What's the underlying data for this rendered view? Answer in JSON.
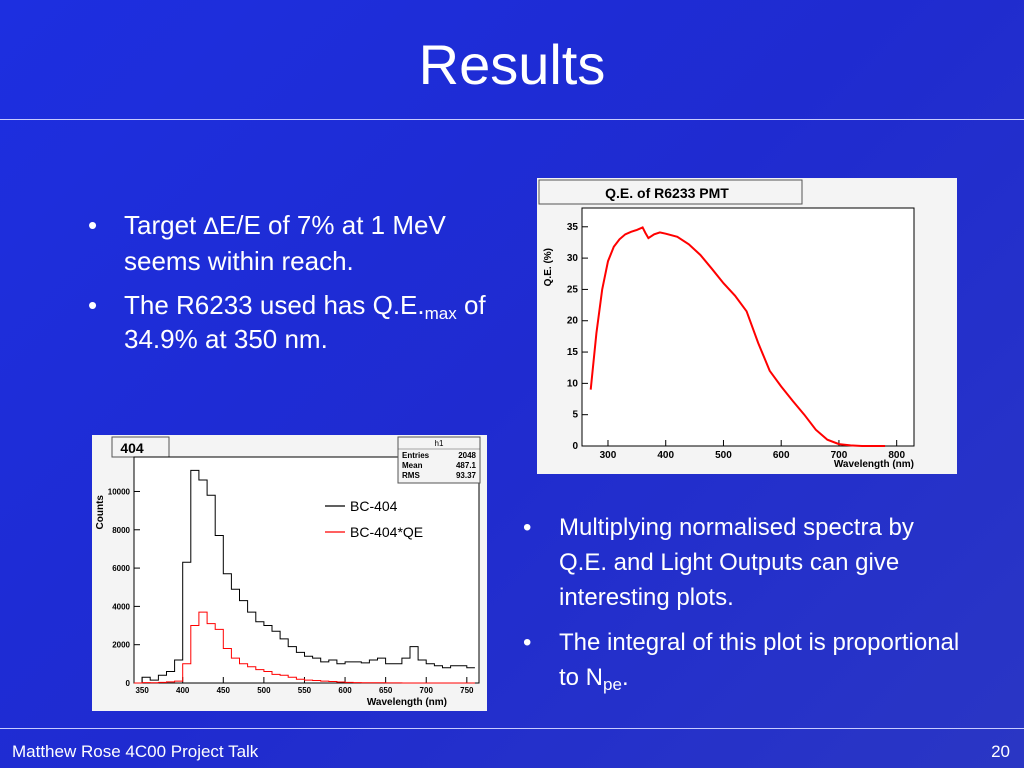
{
  "title": "Results",
  "bullets_top": [
    {
      "pre": "Target ",
      "symbol": "∆",
      "rest": "E/E of 7% at 1 MeV seems within reach."
    },
    {
      "text1": "The R6233 used has Q.E.",
      "sub": "max",
      "text2": " of 34.9% at 350 nm."
    }
  ],
  "bullets_bottom": [
    {
      "text": "Multiplying normalised spectra by Q.E. and Light Outputs can give interesting plots."
    },
    {
      "text1": "The integral of this plot is proportional to N",
      "sub": "pe",
      "text2": "."
    }
  ],
  "footer": {
    "left": "Matthew Rose 4C00 Project Talk",
    "page": "20"
  },
  "chart_data": [
    {
      "type": "line",
      "title": "Q.E. of R6233 PMT",
      "xlabel": "Wavelength (nm)",
      "ylabel": "Q.E. (%)",
      "xlim": [
        255,
        830
      ],
      "ylim": [
        0,
        38
      ],
      "xticks": [
        300,
        400,
        500,
        600,
        700,
        800
      ],
      "yticks": [
        0,
        5,
        10,
        15,
        20,
        25,
        30,
        35
      ],
      "x": [
        270,
        280,
        290,
        300,
        310,
        320,
        330,
        340,
        350,
        360,
        365,
        370,
        380,
        390,
        400,
        420,
        440,
        460,
        480,
        500,
        520,
        540,
        560,
        580,
        600,
        620,
        640,
        660,
        680,
        700,
        720,
        740,
        760,
        780
      ],
      "y": [
        9,
        18,
        25,
        29.5,
        31.8,
        33,
        33.8,
        34.2,
        34.5,
        34.9,
        34,
        33.2,
        33.8,
        34.1,
        33.9,
        33.4,
        32.2,
        30.5,
        28.3,
        26,
        24,
        21.5,
        16.5,
        12,
        9.5,
        7.2,
        5,
        2.6,
        1,
        0.3,
        0.1,
        0,
        0,
        0
      ]
    },
    {
      "type": "line",
      "title": "404",
      "xlabel": "Wavelength (nm)",
      "ylabel": "Counts",
      "xlim": [
        340,
        765
      ],
      "ylim": [
        0,
        11800
      ],
      "xticks": [
        350,
        400,
        450,
        500,
        550,
        600,
        650,
        700,
        750
      ],
      "yticks": [
        0,
        2000,
        4000,
        6000,
        8000,
        10000
      ],
      "stats": {
        "name": "h1",
        "rows": [
          [
            "Entries",
            "2048"
          ],
          [
            "Mean",
            "487.1"
          ],
          [
            "RMS",
            "93.37"
          ]
        ]
      },
      "legend": {
        "position": "top-right"
      },
      "x": [
        345,
        355,
        365,
        375,
        385,
        395,
        405,
        415,
        425,
        435,
        445,
        455,
        465,
        475,
        485,
        495,
        505,
        515,
        525,
        535,
        545,
        555,
        565,
        575,
        585,
        595,
        605,
        615,
        625,
        635,
        645,
        655,
        665,
        675,
        685,
        695,
        705,
        715,
        725,
        735,
        745,
        755
      ],
      "series": [
        {
          "name": "BC-404",
          "color": "#000000",
          "values": [
            0,
            300,
            150,
            400,
            600,
            1200,
            6300,
            11100,
            10600,
            9800,
            7700,
            5700,
            4900,
            4300,
            3700,
            3200,
            3000,
            2700,
            2300,
            1900,
            1600,
            1400,
            1300,
            1100,
            1200,
            1000,
            1100,
            1100,
            1050,
            1200,
            1300,
            1000,
            1000,
            1300,
            1900,
            1200,
            1000,
            900,
            800,
            900,
            900,
            800
          ]
        },
        {
          "name": "BC-404*QE",
          "color": "#ff0000",
          "values": [
            0,
            20,
            10,
            30,
            60,
            100,
            1000,
            3000,
            3700,
            3100,
            2800,
            1800,
            1300,
            1000,
            850,
            700,
            600,
            450,
            400,
            300,
            200,
            150,
            130,
            100,
            80,
            50,
            30,
            20,
            15,
            10,
            8,
            5,
            3,
            2,
            1,
            0,
            0,
            0,
            0,
            0,
            0,
            0
          ]
        }
      ]
    }
  ]
}
